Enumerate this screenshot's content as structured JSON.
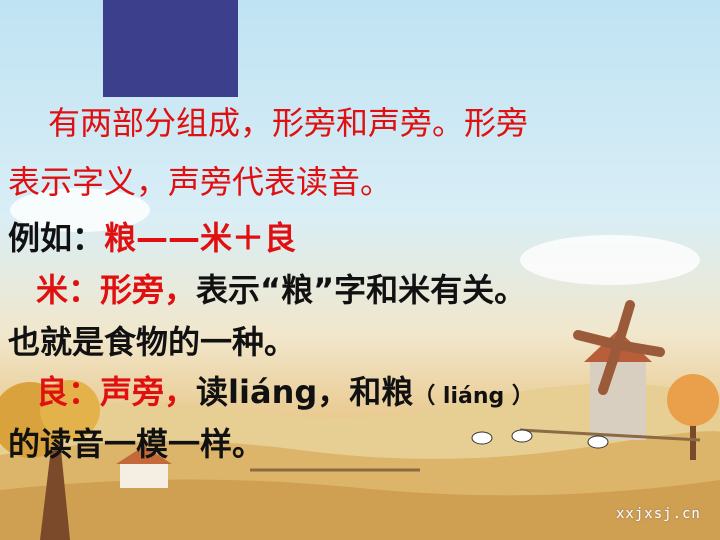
{
  "slide": {
    "line1": "有两部分组成，形旁和声旁。形旁",
    "line2": "表示字义，声旁代表读音。",
    "line3": {
      "prefix": "例如：",
      "formula": "粮——米＋良"
    },
    "line4": {
      "char": "米",
      "label": "：形旁，",
      "rest": "表示“粮”字和米有关。"
    },
    "line5": "也就是食物的一种。",
    "line6": {
      "char": "良",
      "label": "：声旁，",
      "rest": "读liáng，和粮",
      "paren": "（ liáng ）"
    },
    "line7": "的读音一模一样。"
  },
  "watermark": "xxjxsj.cn",
  "colors": {
    "title_block": "#3b3f8c",
    "red_text": "#e01010",
    "body_text": "#111111"
  }
}
